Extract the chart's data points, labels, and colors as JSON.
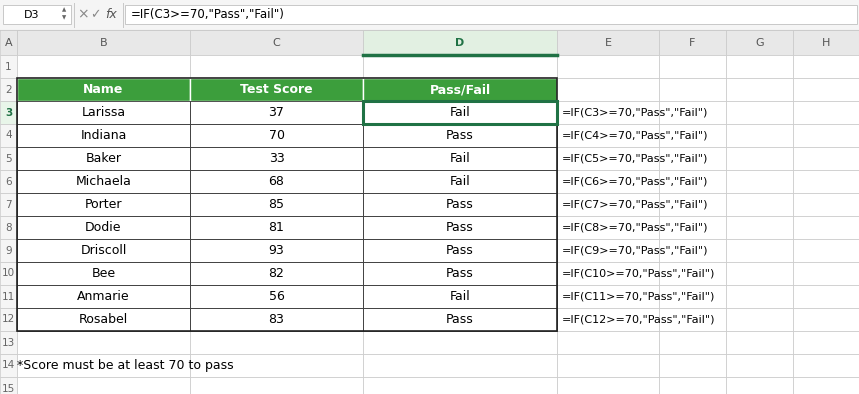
{
  "formula_bar_cell": "D3",
  "formula_bar_text": "=IF(C3>=70,\"Pass\",\"Fail\")",
  "col_letters": [
    "A",
    "B",
    "C",
    "D",
    "E",
    "F",
    "G",
    "H"
  ],
  "headers": [
    "Name",
    "Test Score",
    "Pass/Fail"
  ],
  "header_bg": "#3c9e3c",
  "header_text_color": "#ffffff",
  "names": [
    "Larissa",
    "Indiana",
    "Baker",
    "Michaela",
    "Porter",
    "Dodie",
    "Driscoll",
    "Bee",
    "Anmarie",
    "Rosabel"
  ],
  "scores": [
    "37",
    "70",
    "33",
    "68",
    "85",
    "81",
    "93",
    "82",
    "56",
    "83"
  ],
  "results": [
    "Fail",
    "Pass",
    "Fail",
    "Fail",
    "Pass",
    "Pass",
    "Pass",
    "Pass",
    "Fail",
    "Pass"
  ],
  "formulas": [
    "=IF(C3>=70,\"Pass\",\"Fail\")",
    "=IF(C4>=70,\"Pass\",\"Fail\")",
    "=IF(C5>=70,\"Pass\",\"Fail\")",
    "=IF(C6>=70,\"Pass\",\"Fail\")",
    "=IF(C7>=70,\"Pass\",\"Fail\")",
    "=IF(C8>=70,\"Pass\",\"Fail\")",
    "=IF(C9>=70,\"Pass\",\"Fail\")",
    "=IF(C10>=70,\"Pass\",\"Fail\")",
    "=IF(C11>=70,\"Pass\",\"Fail\")",
    "=IF(C12>=70,\"Pass\",\"Fail\")"
  ],
  "footnote": "*Score must be at least 70 to pass",
  "bg_color": "#ffffff",
  "grid_color": "#c8c8c8",
  "cell_border_color": "#333333",
  "header_bg_col": "#e8e8e8",
  "row_header_bg": "#f5f5f5",
  "toolbar_bg": "#f5f5f5",
  "active_cell_border": "#207245",
  "selected_col_header_bg": "#e2f0e2",
  "selected_col_header_color": "#207245",
  "formula_bar_border": "#c8c8c8",
  "toolbar_border": "#c0c0c0"
}
